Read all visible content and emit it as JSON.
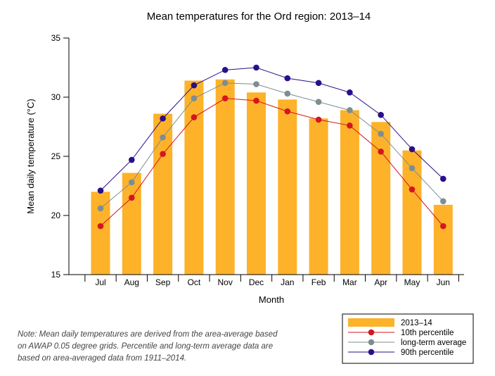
{
  "chart_data": {
    "type": "bar",
    "title": "Mean temperatures for the Ord region: 2013–14",
    "xlabel": "Month",
    "ylabel": "Mean daily temperature (°C)",
    "ylim": [
      15,
      35
    ],
    "yticks": [
      15,
      20,
      25,
      30,
      35
    ],
    "categories": [
      "Jul",
      "Aug",
      "Sep",
      "Oct",
      "Nov",
      "Dec",
      "Jan",
      "Feb",
      "Mar",
      "Apr",
      "May",
      "Jun"
    ],
    "bars": {
      "name": "2013–14",
      "color": "#FDB22A",
      "values": [
        22.0,
        23.6,
        28.6,
        31.4,
        31.5,
        30.4,
        29.8,
        28.2,
        28.9,
        27.9,
        25.5,
        20.9
      ]
    },
    "series": [
      {
        "name": "10th percentile",
        "color": "#D41620",
        "values": [
          19.1,
          21.5,
          25.2,
          28.3,
          29.9,
          29.7,
          28.8,
          28.1,
          27.6,
          25.4,
          22.2,
          19.1
        ]
      },
      {
        "name": "long-term average",
        "color": "#7D8D92",
        "values": [
          20.6,
          22.8,
          26.6,
          29.9,
          31.2,
          31.1,
          30.3,
          29.6,
          28.9,
          26.9,
          24.0,
          21.2
        ]
      },
      {
        "name": "90th percentile",
        "color": "#2A0E8A",
        "values": [
          22.1,
          24.7,
          28.2,
          31.0,
          32.3,
          32.5,
          31.6,
          31.2,
          30.4,
          28.5,
          25.6,
          23.1
        ]
      }
    ],
    "grid": false,
    "legend_position": "bottom-right"
  },
  "note": "Note: Mean daily temperatures are derived from the area-average based on AWAP 0.05 degree grids. Percentile and long-term average data are based on area-averaged data from 1911–2014."
}
